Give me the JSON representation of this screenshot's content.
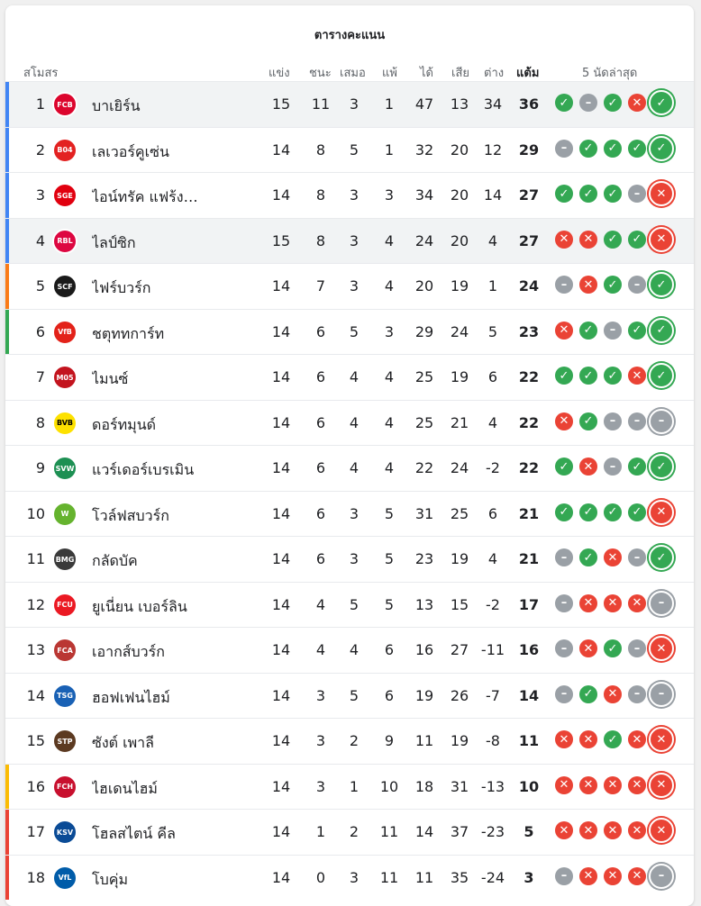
{
  "title": "ตารางคะแนน",
  "headers": {
    "club": "สโมสร",
    "played": "แข่ง",
    "won": "ชนะ",
    "drawn": "เสมอ",
    "lost": "แพ้",
    "gf": "ได้",
    "ga": "เสีย",
    "gd": "ต่าง",
    "pts": "แต้ม",
    "form": "5 นัดล่าสุด"
  },
  "colors": {
    "win": "#34a853",
    "draw": "#9aa0a6",
    "loss": "#ea4335",
    "ucl": "#4285f4",
    "uel": "#fa7b17",
    "uecl": "#34a853",
    "relegation_playoff": "#fbbc04",
    "relegation": "#ea4335"
  },
  "form_icons": {
    "W": "✓",
    "D": "–",
    "L": "✕"
  },
  "teams": [
    {
      "rank": "1",
      "name": "บาเยิร์น",
      "played": "15",
      "won": "11",
      "drawn": "3",
      "lost": "1",
      "gf": "47",
      "ga": "13",
      "gd": "34",
      "pts": "36",
      "form": [
        "W",
        "D",
        "W",
        "L",
        "W"
      ],
      "zone": "ucl",
      "logo_color": "#dc052d",
      "logo_text": "FCB",
      "highlight": true
    },
    {
      "rank": "2",
      "name": "เลเวอร์คูเซ่น",
      "played": "14",
      "won": "8",
      "drawn": "5",
      "lost": "1",
      "gf": "32",
      "ga": "20",
      "gd": "12",
      "pts": "29",
      "form": [
        "D",
        "W",
        "W",
        "W",
        "W"
      ],
      "zone": "ucl",
      "logo_color": "#e32221",
      "logo_text": "B04",
      "highlight": false
    },
    {
      "rank": "3",
      "name": "ไอน์ทรัค แฟร้ง…",
      "played": "14",
      "won": "8",
      "drawn": "3",
      "lost": "3",
      "gf": "34",
      "ga": "20",
      "gd": "14",
      "pts": "27",
      "form": [
        "W",
        "W",
        "W",
        "D",
        "L"
      ],
      "zone": "ucl",
      "logo_color": "#e1000f",
      "logo_text": "SGE",
      "highlight": false
    },
    {
      "rank": "4",
      "name": "ไลป์ซิก",
      "played": "15",
      "won": "8",
      "drawn": "3",
      "lost": "4",
      "gf": "24",
      "ga": "20",
      "gd": "4",
      "pts": "27",
      "form": [
        "L",
        "L",
        "W",
        "W",
        "L"
      ],
      "zone": "ucl",
      "logo_color": "#dd0741",
      "logo_text": "RBL",
      "highlight": true
    },
    {
      "rank": "5",
      "name": "ไฟร์บวร์ก",
      "played": "14",
      "won": "7",
      "drawn": "3",
      "lost": "4",
      "gf": "20",
      "ga": "19",
      "gd": "1",
      "pts": "24",
      "form": [
        "D",
        "L",
        "W",
        "D",
        "W"
      ],
      "zone": "uel",
      "logo_color": "#1a1a1a",
      "logo_text": "SCF",
      "highlight": false
    },
    {
      "rank": "6",
      "name": "ชตุททการ์ท",
      "played": "14",
      "won": "6",
      "drawn": "5",
      "lost": "3",
      "gf": "29",
      "ga": "24",
      "gd": "5",
      "pts": "23",
      "form": [
        "L",
        "W",
        "D",
        "W",
        "W"
      ],
      "zone": "uecl",
      "logo_color": "#e32219",
      "logo_text": "VfB",
      "highlight": false
    },
    {
      "rank": "7",
      "name": "ไมนซ์",
      "played": "14",
      "won": "6",
      "drawn": "4",
      "lost": "4",
      "gf": "25",
      "ga": "19",
      "gd": "6",
      "pts": "22",
      "form": [
        "W",
        "W",
        "W",
        "L",
        "W"
      ],
      "zone": "",
      "logo_color": "#c3141e",
      "logo_text": "M05",
      "highlight": false
    },
    {
      "rank": "8",
      "name": "ดอร์ทมุนด์",
      "played": "14",
      "won": "6",
      "drawn": "4",
      "lost": "4",
      "gf": "25",
      "ga": "21",
      "gd": "4",
      "pts": "22",
      "form": [
        "L",
        "W",
        "D",
        "D",
        "D"
      ],
      "zone": "",
      "logo_color": "#fde100",
      "logo_text": "BVB",
      "highlight": false
    },
    {
      "rank": "9",
      "name": "แวร์เดอร์เบรเมิน",
      "played": "14",
      "won": "6",
      "drawn": "4",
      "lost": "4",
      "gf": "22",
      "ga": "24",
      "gd": "-2",
      "pts": "22",
      "form": [
        "W",
        "L",
        "D",
        "W",
        "W"
      ],
      "zone": "",
      "logo_color": "#1d9053",
      "logo_text": "SVW",
      "highlight": false
    },
    {
      "rank": "10",
      "name": "โวล์ฟสบวร์ก",
      "played": "14",
      "won": "6",
      "drawn": "3",
      "lost": "5",
      "gf": "31",
      "ga": "25",
      "gd": "6",
      "pts": "21",
      "form": [
        "W",
        "W",
        "W",
        "W",
        "L"
      ],
      "zone": "",
      "logo_color": "#65b32e",
      "logo_text": "W",
      "highlight": false
    },
    {
      "rank": "11",
      "name": "กลัดบัค",
      "played": "14",
      "won": "6",
      "drawn": "3",
      "lost": "5",
      "gf": "23",
      "ga": "19",
      "gd": "4",
      "pts": "21",
      "form": [
        "D",
        "W",
        "L",
        "D",
        "W"
      ],
      "zone": "",
      "logo_color": "#3a3a3a",
      "logo_text": "BMG",
      "highlight": false
    },
    {
      "rank": "12",
      "name": "ยูเนี่ยน เบอร์ลิน",
      "played": "14",
      "won": "4",
      "drawn": "5",
      "lost": "5",
      "gf": "13",
      "ga": "15",
      "gd": "-2",
      "pts": "17",
      "form": [
        "D",
        "L",
        "L",
        "L",
        "D"
      ],
      "zone": "",
      "logo_color": "#eb1923",
      "logo_text": "FCU",
      "highlight": false
    },
    {
      "rank": "13",
      "name": "เอากส์บวร์ก",
      "played": "14",
      "won": "4",
      "drawn": "4",
      "lost": "6",
      "gf": "16",
      "ga": "27",
      "gd": "-11",
      "pts": "16",
      "form": [
        "D",
        "L",
        "W",
        "D",
        "L"
      ],
      "zone": "",
      "logo_color": "#ba3733",
      "logo_text": "FCA",
      "highlight": false
    },
    {
      "rank": "14",
      "name": "ฮอฟเฟนไฮม์",
      "played": "14",
      "won": "3",
      "drawn": "5",
      "lost": "6",
      "gf": "19",
      "ga": "26",
      "gd": "-7",
      "pts": "14",
      "form": [
        "D",
        "W",
        "L",
        "D",
        "D"
      ],
      "zone": "",
      "logo_color": "#1961b5",
      "logo_text": "TSG",
      "highlight": false
    },
    {
      "rank": "15",
      "name": "ซังต์ เพาลี",
      "played": "14",
      "won": "3",
      "drawn": "2",
      "lost": "9",
      "gf": "11",
      "ga": "19",
      "gd": "-8",
      "pts": "11",
      "form": [
        "L",
        "L",
        "W",
        "L",
        "L"
      ],
      "zone": "",
      "logo_color": "#5c3a21",
      "logo_text": "STP",
      "highlight": false
    },
    {
      "rank": "16",
      "name": "ไฮเดนไฮม์",
      "played": "14",
      "won": "3",
      "drawn": "1",
      "lost": "10",
      "gf": "18",
      "ga": "31",
      "gd": "-13",
      "pts": "10",
      "form": [
        "L",
        "L",
        "L",
        "L",
        "L"
      ],
      "zone": "relegation_playoff",
      "logo_color": "#c8102e",
      "logo_text": "FCH",
      "highlight": false
    },
    {
      "rank": "17",
      "name": "โฮลสไตน์ คีล",
      "played": "14",
      "won": "1",
      "drawn": "2",
      "lost": "11",
      "gf": "14",
      "ga": "37",
      "gd": "-23",
      "pts": "5",
      "form": [
        "L",
        "L",
        "L",
        "L",
        "L"
      ],
      "zone": "relegation",
      "logo_color": "#0a4b96",
      "logo_text": "KSV",
      "highlight": false
    },
    {
      "rank": "18",
      "name": "โบคุ่ม",
      "played": "14",
      "won": "0",
      "drawn": "3",
      "lost": "11",
      "gf": "11",
      "ga": "35",
      "gd": "-24",
      "pts": "3",
      "form": [
        "D",
        "L",
        "L",
        "L",
        "D"
      ],
      "zone": "relegation",
      "logo_color": "#005ca9",
      "logo_text": "VfL",
      "highlight": false
    }
  ]
}
